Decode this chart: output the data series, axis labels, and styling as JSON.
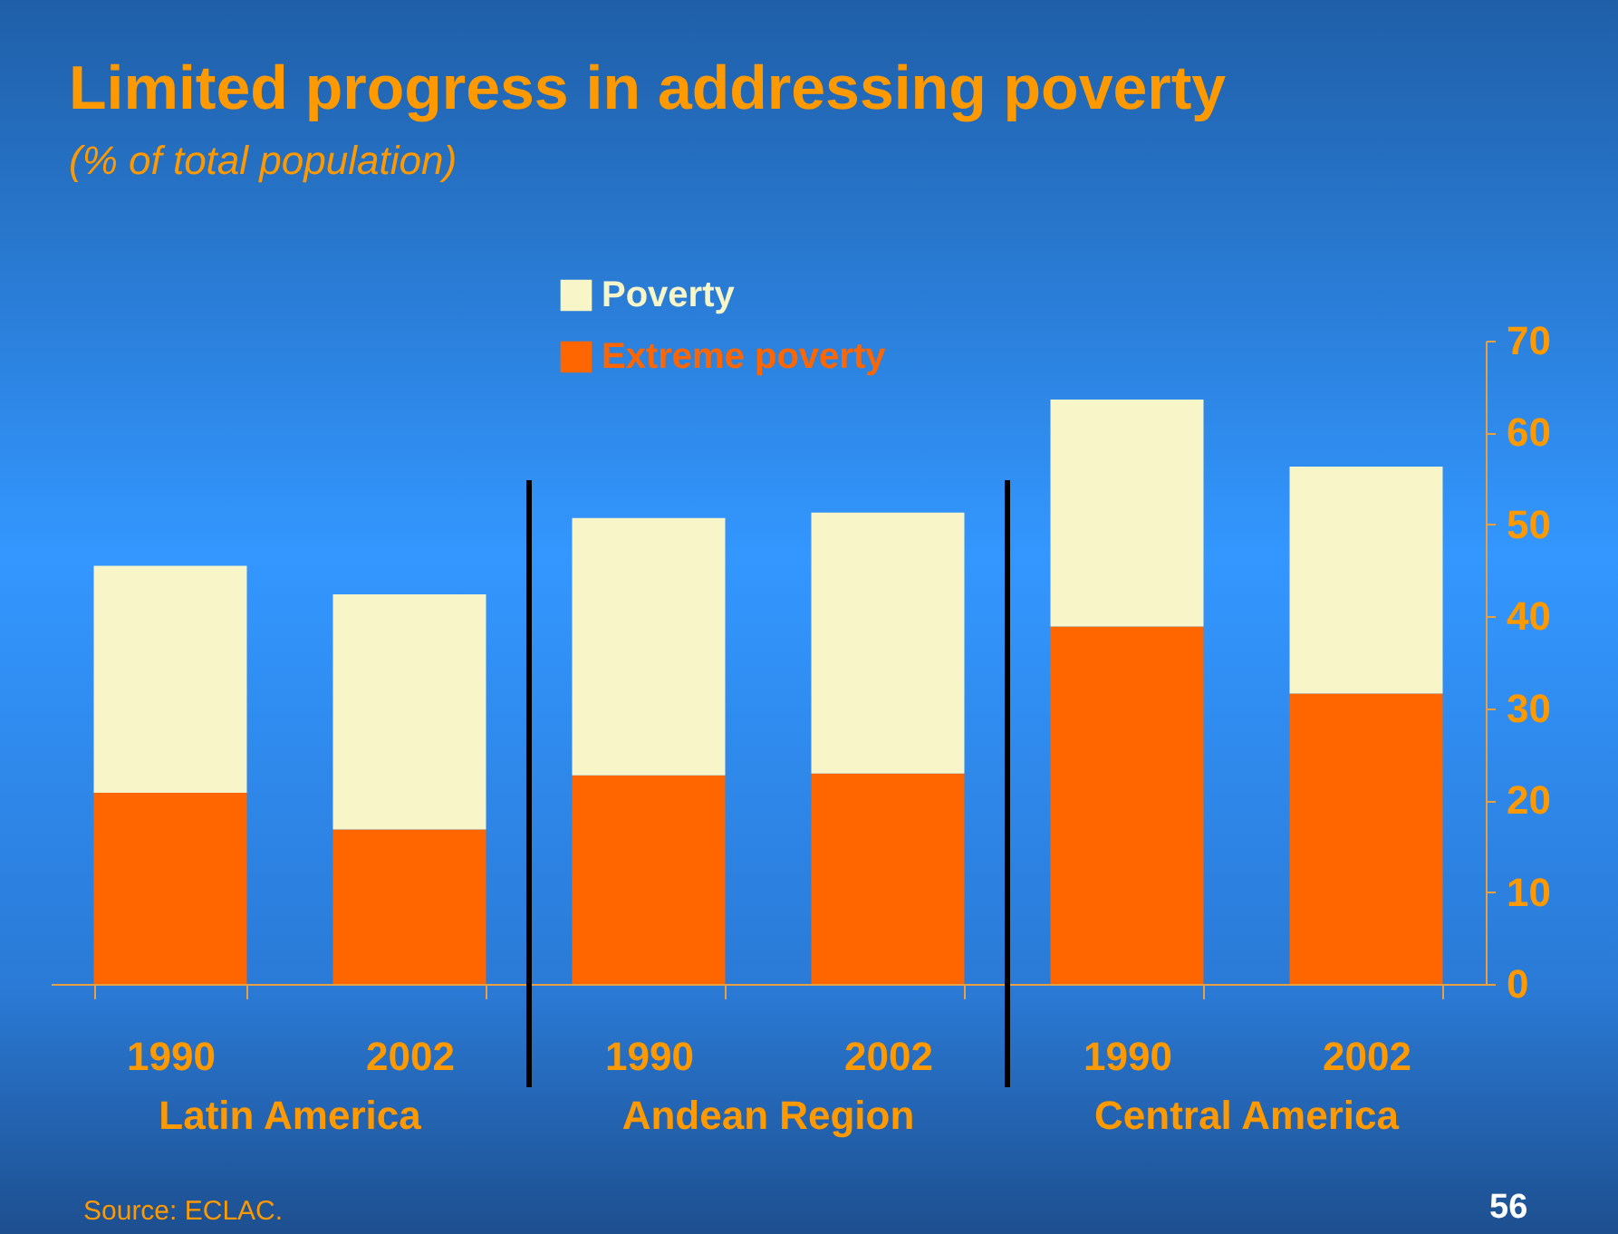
{
  "chart_data": {
    "type": "bar",
    "title": "Limited progress in addressing poverty",
    "subtitle": "(% of total population)",
    "categories": [
      "1990",
      "2002",
      "1990",
      "2002",
      "1990",
      "2002"
    ],
    "stacked": true,
    "series": [
      {
        "name": "Extreme poverty",
        "color": "#ff6600",
        "values": [
          20.8,
          16.8,
          22.7,
          22.9,
          38.9,
          31.6
        ]
      },
      {
        "name": "Poverty",
        "color": "#f8f6c8",
        "values": [
          24.7,
          25.6,
          28.0,
          28.4,
          24.7,
          24.7
        ]
      }
    ],
    "ylim": [
      0,
      70
    ],
    "yticks": [
      0,
      10,
      20,
      30,
      40,
      50,
      60,
      70
    ],
    "legend": "top",
    "grid": false,
    "annotations": [
      "Latin America",
      "Andean Region",
      "Central America",
      "Source: ECLAC.",
      "56"
    ]
  }
}
